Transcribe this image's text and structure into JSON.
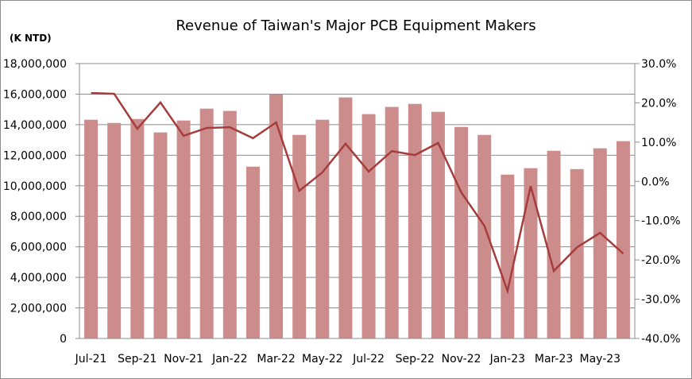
{
  "chart_data": {
    "type": "bar+line",
    "title": "Revenue of Taiwan's Major PCB Equipment Makers",
    "ylabel": "(K NTD)",
    "categories": [
      "Jul-21",
      "Aug-21",
      "Sep-21",
      "Oct-21",
      "Nov-21",
      "Dec-21",
      "Jan-22",
      "Feb-22",
      "Mar-22",
      "Apr-22",
      "May-22",
      "Jun-22",
      "Jul-22",
      "Aug-22",
      "Sep-22",
      "Oct-22",
      "Nov-22",
      "Dec-22",
      "Jan-23",
      "Feb-23",
      "Mar-23",
      "Apr-23",
      "May-23",
      "Jun-23"
    ],
    "x_tick_labels": [
      "Jul-21",
      "Sep-21",
      "Nov-21",
      "Jan-22",
      "Mar-22",
      "May-22",
      "Jul-22",
      "Sep-22",
      "Nov-22",
      "Jan-23",
      "Mar-23",
      "May-23"
    ],
    "series": [
      {
        "type": "bar",
        "axis": "left",
        "color": "#cd8c8c",
        "values": [
          14320000,
          14110000,
          14370000,
          13490000,
          14270000,
          15050000,
          14900000,
          11250000,
          15990000,
          13330000,
          14320000,
          15780000,
          14690000,
          15160000,
          15360000,
          14840000,
          13850000,
          13330000,
          10730000,
          11150000,
          12290000,
          11090000,
          12450000,
          12920000
        ]
      },
      {
        "type": "line",
        "axis": "right",
        "color": "#a63c3c",
        "values": [
          22.5,
          22.3,
          13.4,
          20.1,
          11.6,
          13.6,
          13.8,
          11.0,
          15.0,
          -2.4,
          2.3,
          9.6,
          2.5,
          7.7,
          6.7,
          9.8,
          -2.8,
          -11.3,
          -27.9,
          -1.2,
          -22.8,
          -16.8,
          -13.1,
          -18.4
        ]
      }
    ],
    "y_left": {
      "lim": [
        0,
        18000000
      ],
      "ticks": [
        "0",
        "2,000,000",
        "4,000,000",
        "6,000,000",
        "8,000,000",
        "10,000,000",
        "12,000,000",
        "14,000,000",
        "16,000,000",
        "18,000,000"
      ]
    },
    "y_right": {
      "lim": [
        -40,
        30
      ],
      "ticks": [
        "-40.0%",
        "-30.0%",
        "-20.0%",
        "-10.0%",
        "0.0%",
        "10.0%",
        "20.0%",
        "30.0%"
      ]
    },
    "grid": true,
    "legend": "none"
  }
}
